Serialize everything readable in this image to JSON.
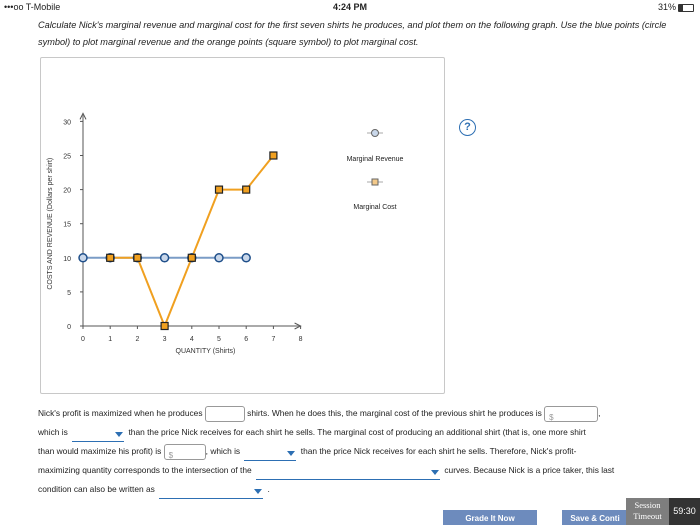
{
  "status_bar": {
    "carrier": "•••oo T-Mobile",
    "time": "4:24 PM",
    "battery": "31%"
  },
  "instructions": "Calculate Nick's marginal revenue and marginal cost for the first seven shirts he produces, and plot them on the following graph. Use the blue points (circle symbol) to plot marginal revenue and the orange points (square symbol) to plot marginal cost.",
  "help_label": "?",
  "chart_data": {
    "type": "line",
    "xlabel": "QUANTITY (Shirts)",
    "ylabel": "COSTS AND REVENUE (Dollars per shirt)",
    "xlim": [
      0,
      8
    ],
    "ylim": [
      0,
      30
    ],
    "x_ticks": [
      0,
      1,
      2,
      3,
      4,
      5,
      6,
      7,
      8
    ],
    "y_ticks": [
      0,
      5,
      10,
      15,
      20,
      25,
      30
    ],
    "series": [
      {
        "name": "Marginal Revenue",
        "marker": "circle",
        "color": "#2d6fb3",
        "x": [
          0,
          1,
          2,
          3,
          4,
          5,
          6
        ],
        "y": [
          10,
          10,
          10,
          10,
          10,
          10,
          10
        ]
      },
      {
        "name": "Marginal Cost",
        "marker": "square",
        "color": "#f0a020",
        "x": [
          1,
          2,
          3,
          4,
          5,
          6,
          7
        ],
        "y": [
          10,
          10,
          0,
          10,
          20,
          20,
          25
        ]
      }
    ],
    "legend": [
      "Marginal Revenue",
      "Marginal Cost"
    ],
    "legend_position": "right"
  },
  "question": {
    "l1a": "Nick's profit is maximized when he produces",
    "l1b": "shirts. When he does this, the marginal cost of the previous shirt he produces is",
    "l1c": ",",
    "l2a": "which is",
    "l2b": "than the price Nick receives for each shirt he sells. The marginal cost of producing an additional shirt (that is, one more shirt",
    "l3a": "than would maximize his profit) is",
    "l3b": ", which is",
    "l3c": "than the price Nick receives for each shirt he sells. Therefore, Nick's profit-",
    "l4a": "maximizing quantity corresponds to the intersection of the",
    "l4b": "curves. Because Nick is a price taker, this last",
    "l5a": "condition can also be written as",
    "l5b": ".",
    "dollar": "$"
  },
  "buttons": {
    "grade": "Grade It Now",
    "save": "Save & Conti"
  },
  "session": {
    "line1": "Session",
    "line2": "Timeout",
    "timer": "59:30"
  }
}
